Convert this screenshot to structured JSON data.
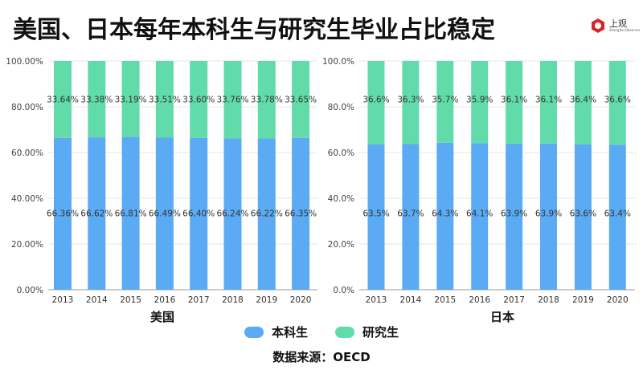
{
  "title": "美国、日本每年本科生与研究生毕业占比稳定",
  "logo": {
    "text": "上观",
    "subtext": "Shanghai Observer"
  },
  "colors": {
    "undergrad": "#5aabf3",
    "graduate": "#62dbab"
  },
  "legend": [
    {
      "label": "本科生",
      "color": "#5aabf3"
    },
    {
      "label": "研究生",
      "color": "#62dbab"
    }
  ],
  "source": "数据来源：OECD",
  "chart_data": [
    {
      "type": "bar",
      "stacked": true,
      "xlabel": "美国",
      "categories": [
        "2013",
        "2014",
        "2015",
        "2016",
        "2017",
        "2018",
        "2019",
        "2020"
      ],
      "ylim": [
        0,
        100
      ],
      "yticks": [
        "0.00%",
        "20.00%",
        "40.00%",
        "60.00%",
        "80.00%",
        "100.00%"
      ],
      "grid": true,
      "series": [
        {
          "name": "本科生",
          "values": [
            66.36,
            66.62,
            66.81,
            66.49,
            66.4,
            66.24,
            66.22,
            66.35
          ],
          "labels": [
            "66.36%",
            "66.62%",
            "66.81%",
            "66.49%",
            "66.40%",
            "66.24%",
            "66.22%",
            "66.35%"
          ]
        },
        {
          "name": "研究生",
          "values": [
            33.64,
            33.38,
            33.19,
            33.51,
            33.6,
            33.76,
            33.78,
            33.65
          ],
          "labels": [
            "33.64%",
            "33.38%",
            "33.19%",
            "33.51%",
            "33.60%",
            "33.76%",
            "33.78%",
            "33.65%"
          ]
        }
      ]
    },
    {
      "type": "bar",
      "stacked": true,
      "xlabel": "日本",
      "categories": [
        "2013",
        "2014",
        "2015",
        "2016",
        "2017",
        "2018",
        "2019",
        "2020"
      ],
      "ylim": [
        0,
        100
      ],
      "yticks": [
        "0.0%",
        "20.0%",
        "40.0%",
        "60.0%",
        "80.0%",
        "100.0%"
      ],
      "grid": true,
      "series": [
        {
          "name": "本科生",
          "values": [
            63.5,
            63.7,
            64.3,
            64.1,
            63.9,
            63.9,
            63.6,
            63.4
          ],
          "labels": [
            "63.5%",
            "63.7%",
            "64.3%",
            "64.1%",
            "63.9%",
            "63.9%",
            "63.6%",
            "63.4%"
          ]
        },
        {
          "name": "研究生",
          "values": [
            36.6,
            36.3,
            35.7,
            35.9,
            36.1,
            36.1,
            36.4,
            36.6
          ],
          "labels": [
            "36.6%",
            "36.3%",
            "35.7%",
            "35.9%",
            "36.1%",
            "36.1%",
            "36.4%",
            "36.6%"
          ]
        }
      ]
    }
  ]
}
